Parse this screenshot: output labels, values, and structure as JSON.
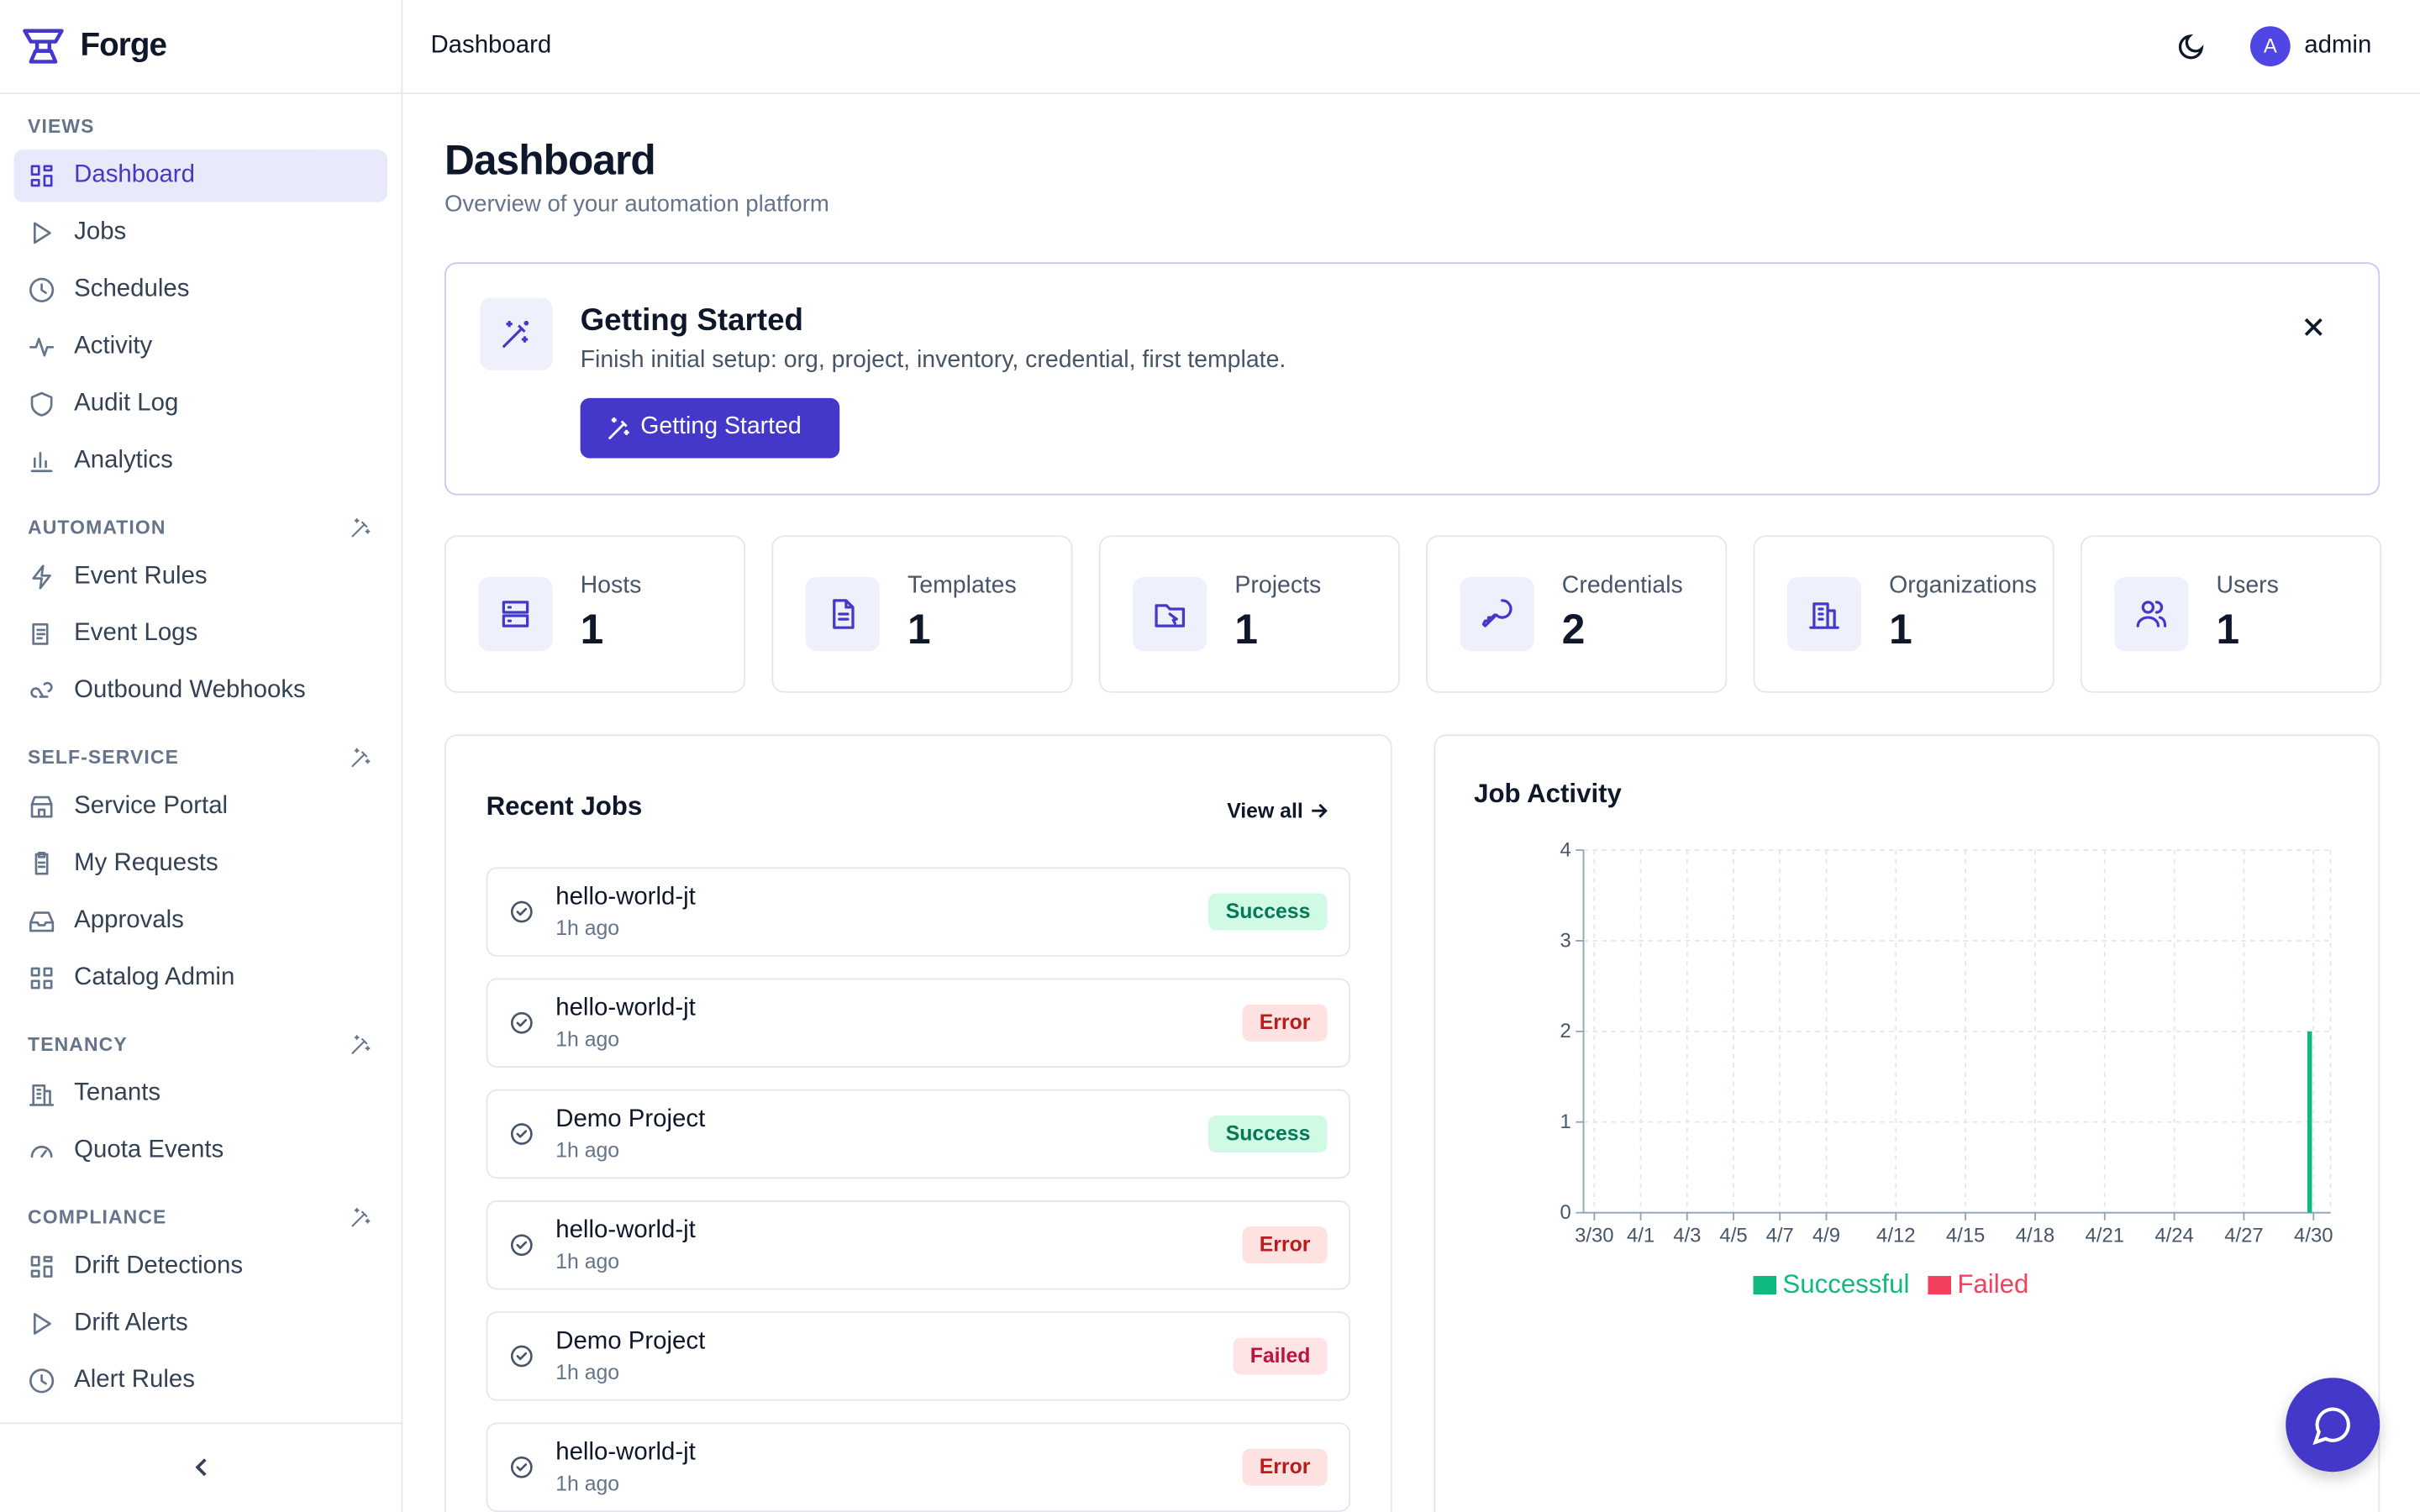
{
  "brand": {
    "name": "Forge"
  },
  "header": {
    "title": "Dashboard",
    "user": {
      "initial": "A",
      "name": "admin"
    }
  },
  "sidebar": {
    "sections": [
      {
        "label": "VIEWS",
        "items": [
          "Dashboard",
          "Jobs",
          "Schedules",
          "Activity",
          "Audit Log",
          "Analytics"
        ]
      },
      {
        "label": "AUTOMATION",
        "items": [
          "Event Rules",
          "Event Logs",
          "Outbound Webhooks"
        ]
      },
      {
        "label": "SELF-SERVICE",
        "items": [
          "Service Portal",
          "My Requests",
          "Approvals",
          "Catalog Admin"
        ]
      },
      {
        "label": "TENANCY",
        "items": [
          "Tenants",
          "Quota Events"
        ]
      },
      {
        "label": "COMPLIANCE",
        "items": [
          "Drift Detections",
          "Drift Alerts",
          "Alert Rules"
        ]
      }
    ]
  },
  "page": {
    "title": "Dashboard",
    "subtitle": "Overview of your automation platform"
  },
  "getting_started": {
    "title": "Getting Started",
    "text": "Finish initial setup: org, project, inventory, credential, first template.",
    "button": "Getting Started"
  },
  "stats": [
    {
      "label": "Hosts",
      "value": 1
    },
    {
      "label": "Templates",
      "value": 1
    },
    {
      "label": "Projects",
      "value": 1
    },
    {
      "label": "Credentials",
      "value": 2
    },
    {
      "label": "Organizations",
      "value": 1
    },
    {
      "label": "Users",
      "value": 1
    }
  ],
  "recent_jobs": {
    "title": "Recent Jobs",
    "link": "View all",
    "items": [
      {
        "name": "hello-world-jt",
        "time": "1h ago",
        "status": "Success",
        "color": "#047857",
        "background": "#d1fae5"
      },
      {
        "name": "hello-world-jt",
        "time": "1h ago",
        "status": "Error",
        "color": "#b91c1c",
        "background": "#fee2e2"
      },
      {
        "name": "Demo Project",
        "time": "1h ago",
        "status": "Success",
        "color": "#047857",
        "background": "#d1fae5"
      },
      {
        "name": "hello-world-jt",
        "time": "1h ago",
        "status": "Error",
        "color": "#b91c1c",
        "background": "#fee2e2"
      },
      {
        "name": "Demo Project",
        "time": "1h ago",
        "status": "Failed",
        "color": "#be123c",
        "background": "#ffe4e6"
      },
      {
        "name": "hello-world-jt",
        "time": "1h ago",
        "status": "Error",
        "color": "#b91c1c",
        "background": "#fee2e2"
      }
    ]
  },
  "chart_data": {
    "type": "bar",
    "title": "Job Activity",
    "categories": [
      "3/30",
      null,
      "4/1",
      null,
      "4/3",
      null,
      "4/5",
      null,
      "4/7",
      null,
      "4/9",
      null,
      null,
      "4/12",
      null,
      null,
      "4/15",
      null,
      null,
      "4/18",
      null,
      null,
      "4/21",
      null,
      null,
      "4/24",
      null,
      null,
      "4/27",
      null,
      null,
      "4/30"
    ],
    "series": [
      {
        "name": "Successful",
        "color": "#10b981",
        "values": [
          0,
          0,
          0,
          0,
          0,
          0,
          0,
          0,
          0,
          0,
          0,
          0,
          0,
          0,
          0,
          0,
          0,
          0,
          0,
          0,
          0,
          0,
          0,
          0,
          0,
          0,
          0,
          0,
          0,
          0,
          0,
          2
        ]
      },
      {
        "name": "Failed",
        "color": "#f43f5e",
        "values": [
          0,
          0,
          0,
          0,
          0,
          0,
          0,
          0,
          0,
          0,
          0,
          0,
          0,
          0,
          0,
          0,
          0,
          0,
          0,
          0,
          0,
          0,
          0,
          0,
          0,
          0,
          0,
          0,
          0,
          0,
          0,
          0
        ]
      }
    ],
    "ylim": [
      0,
      4
    ],
    "yticks": [
      0,
      1,
      2,
      3,
      4
    ],
    "grid": true
  }
}
